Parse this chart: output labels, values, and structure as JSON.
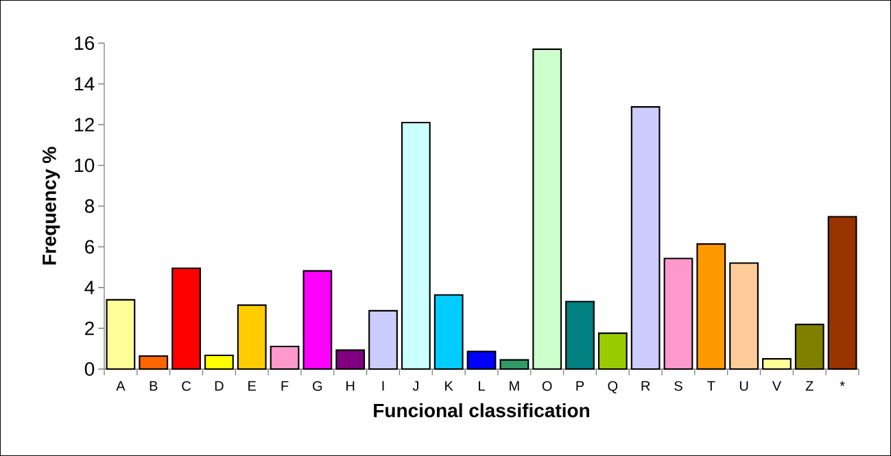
{
  "chart_data": {
    "type": "bar",
    "xlabel": "Funcional classification",
    "ylabel": "Frequency %",
    "categories": [
      "A",
      "B",
      "C",
      "D",
      "E",
      "F",
      "G",
      "H",
      "I",
      "J",
      "K",
      "L",
      "M",
      "O",
      "P",
      "Q",
      "R",
      "S",
      "T",
      "U",
      "V",
      "Z",
      "*"
    ],
    "values": [
      3.4,
      0.64,
      4.95,
      0.67,
      3.14,
      1.11,
      4.82,
      0.93,
      2.86,
      12.1,
      3.64,
      0.86,
      0.45,
      15.7,
      3.31,
      1.76,
      12.87,
      5.43,
      6.14,
      5.2,
      0.5,
      2.19,
      7.48
    ],
    "colors": [
      "#ffff99",
      "#ff6600",
      "#ff0000",
      "#ffff00",
      "#ffcc00",
      "#ff99cc",
      "#ff00ff",
      "#800080",
      "#ccccff",
      "#ccffff",
      "#00ccff",
      "#0000ff",
      "#339966",
      "#ccffcc",
      "#008080",
      "#99cc00",
      "#ccccff",
      "#ff99cc",
      "#ff9900",
      "#ffcc99",
      "#ffff99",
      "#808000",
      "#993300"
    ],
    "ylim": [
      0,
      16
    ],
    "yticks": [
      0,
      2,
      4,
      6,
      8,
      10,
      12,
      14,
      16
    ]
  }
}
